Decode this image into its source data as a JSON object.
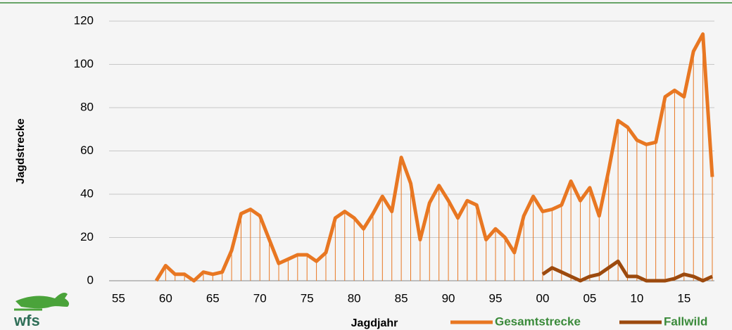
{
  "logo": "wfs",
  "chart_data": {
    "type": "line",
    "x_label": "Jagdjahr",
    "y_label": "Jagdstrecke",
    "categories": [
      null,
      "55",
      null,
      null,
      null,
      null,
      "60",
      null,
      null,
      null,
      null,
      "65",
      null,
      null,
      null,
      null,
      "70",
      null,
      null,
      null,
      null,
      "75",
      null,
      null,
      null,
      null,
      "80",
      null,
      null,
      null,
      null,
      "85",
      null,
      null,
      null,
      null,
      "90",
      null,
      null,
      null,
      null,
      "95",
      null,
      null,
      null,
      null,
      "00",
      null,
      null,
      null,
      null,
      "05",
      null,
      null,
      null,
      null,
      "10",
      null,
      null,
      null,
      null,
      "15",
      null,
      null,
      null
    ],
    "series": [
      {
        "name": "Gesamtstrecke",
        "color": "#e87722",
        "drop_lines": true,
        "values": [
          null,
          null,
          null,
          null,
          null,
          0,
          7,
          3,
          3,
          0,
          4,
          3,
          4,
          14,
          31,
          33,
          30,
          19,
          8,
          10,
          12,
          12,
          9,
          13,
          29,
          32,
          29,
          24,
          31,
          39,
          32,
          57,
          45,
          19,
          36,
          44,
          37,
          29,
          37,
          35,
          19,
          24,
          20,
          13,
          30,
          39,
          32,
          33,
          35,
          46,
          37,
          43,
          30,
          51,
          74,
          71,
          65,
          63,
          64,
          85,
          88,
          85,
          106,
          114,
          48
        ]
      },
      {
        "name": "Fallwild",
        "color": "#9c4a0e",
        "values": [
          null,
          null,
          null,
          null,
          null,
          null,
          null,
          null,
          null,
          null,
          null,
          null,
          null,
          null,
          null,
          null,
          null,
          null,
          null,
          null,
          null,
          null,
          null,
          null,
          null,
          null,
          null,
          null,
          null,
          null,
          null,
          null,
          null,
          null,
          null,
          null,
          null,
          null,
          null,
          null,
          null,
          null,
          null,
          null,
          null,
          null,
          3,
          6,
          4,
          2,
          0,
          2,
          3,
          6,
          9,
          2,
          2,
          0,
          0,
          0,
          1,
          3,
          2,
          0,
          2
        ]
      }
    ],
    "ylim": [
      0,
      120
    ],
    "yticks": [
      0,
      20,
      40,
      60,
      80,
      100,
      120
    ],
    "grid": true,
    "legend": "bottom-right"
  }
}
